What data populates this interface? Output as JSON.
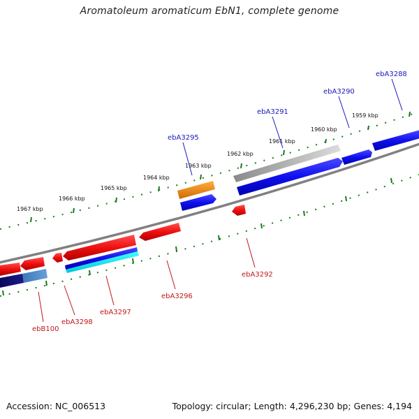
{
  "title": "Aromatoleum aromaticum EbN1, complete genome",
  "footer": {
    "accession": "Accession: NC_006513",
    "info": "Topology: circular; Length: 4,296,230 bp; Genes: 4,194"
  },
  "kbp_labels": [
    "1959 kbp",
    "1960 kbp",
    "1961 kbp",
    "1962 kbp",
    "1963 kbp",
    "1964 kbp",
    "1965 kbp",
    "1966 kbp",
    "1967 kbp"
  ],
  "gene_labels": {
    "top": [
      "ebA3288",
      "ebA3290",
      "ebA3291",
      "ebA3295"
    ],
    "bottom": [
      "ebA3292",
      "ebA3296",
      "ebA3297",
      "ebA3298",
      "ebB100"
    ]
  },
  "colors": {
    "forward": "#1010ee",
    "reverse": "#ee1010",
    "grey": "#9a9a9a",
    "orange": "#ee8a10",
    "label_top": "#1818b8",
    "label_bottom": "#c01818",
    "tick": "#1a7a1a"
  }
}
